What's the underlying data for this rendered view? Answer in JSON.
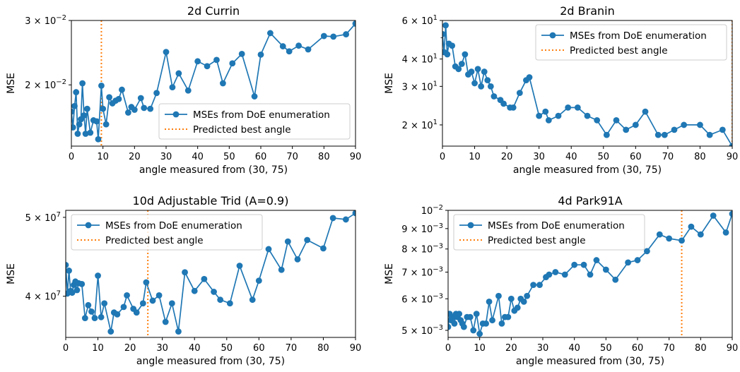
{
  "figure": {
    "charts": [
      {
        "type": "line",
        "title": "2d Currin",
        "xlabel": "angle measured from (30, 75)",
        "ylabel": "MSE",
        "yscale": "log",
        "xlim": [
          0,
          90
        ],
        "ylim": [
          0.0136,
          0.03
        ],
        "xticks": [
          0,
          10,
          20,
          30,
          40,
          50,
          60,
          70,
          80,
          90
        ],
        "xtick_labels": [
          "0",
          "10",
          "20",
          "30",
          "40",
          "50",
          "60",
          "70",
          "80",
          "90"
        ],
        "yticks": [
          0.02,
          0.03
        ],
        "ytick_labels": [
          {
            "base": "2 × 10",
            "exp": "−2"
          },
          {
            "base": "3 × 10",
            "exp": "−2"
          }
        ],
        "legend_position": "lower-right",
        "predicted_best_angle": 9.5,
        "series": [
          {
            "name": "MSEs from DoE enumeration",
            "color": "#1f77b4",
            "x": [
              0,
              0.5,
              1,
              1.5,
              2,
              2.5,
              3,
              3.5,
              4,
              4.5,
              5,
              6,
              7,
              8,
              8.5,
              9.5,
              10,
              11,
              12,
              13,
              14,
              15,
              16,
              18,
              19,
              20,
              22,
              23,
              25,
              27,
              30,
              32,
              34,
              37,
              40,
              43,
              46,
              48,
              51,
              54,
              58,
              60,
              63,
              67,
              69,
              72,
              75,
              80,
              83,
              87,
              90
            ],
            "y": [
              0.0169,
              0.0153,
              0.0175,
              0.0191,
              0.0147,
              0.0156,
              0.0161,
              0.0202,
              0.0165,
              0.0147,
              0.0172,
              0.0148,
              0.016,
              0.0159,
              0.0142,
              0.0199,
              0.0172,
              0.0156,
              0.0185,
              0.0178,
              0.0181,
              0.0183,
              0.0194,
              0.0168,
              0.0174,
              0.0171,
              0.0184,
              0.0173,
              0.0172,
              0.019,
              0.0246,
              0.0197,
              0.0215,
              0.0193,
              0.0232,
              0.0225,
              0.0234,
              0.0202,
              0.0229,
              0.0243,
              0.0186,
              0.0242,
              0.0277,
              0.0255,
              0.0247,
              0.0256,
              0.025,
              0.0272,
              0.0271,
              0.0275,
              0.0294
            ]
          }
        ]
      },
      {
        "type": "line",
        "title": "2d Branin",
        "xlabel": "angle measured from (30, 75)",
        "ylabel": "MSE",
        "yscale": "log",
        "xlim": [
          0,
          90
        ],
        "ylim": [
          16,
          60
        ],
        "xticks": [
          0,
          10,
          20,
          30,
          40,
          50,
          60,
          70,
          80,
          90
        ],
        "xtick_labels": [
          "0",
          "10",
          "20",
          "30",
          "40",
          "50",
          "60",
          "70",
          "80",
          "90"
        ],
        "yticks": [
          20,
          30,
          40,
          60
        ],
        "ytick_labels": [
          {
            "base": "2 × 10",
            "exp": "1"
          },
          {
            "base": "3 × 10",
            "exp": "1"
          },
          {
            "base": "4 × 10",
            "exp": "1"
          },
          {
            "base": "6 × 10",
            "exp": "1"
          }
        ],
        "legend_position": "upper-right",
        "predicted_best_angle": 90,
        "series": [
          {
            "name": "MSEs from DoE enumeration",
            "color": "#1f77b4",
            "x": [
              0,
              0.5,
              1,
              1.5,
              2,
              3,
              4,
              5,
              6,
              7,
              8,
              9,
              10,
              11,
              12,
              13,
              14,
              15,
              16,
              18,
              19,
              21,
              22,
              24,
              26,
              27,
              30,
              32,
              33,
              36,
              39,
              42,
              45,
              48,
              51,
              54,
              57,
              60,
              63,
              67,
              69,
              72,
              75,
              80,
              83,
              87,
              90
            ],
            "y": [
              52,
              43,
              57,
              42,
              47,
              46,
              37,
              36,
              38,
              42,
              34,
              35,
              31,
              36,
              30,
              35,
              32,
              30,
              27,
              26,
              25,
              24,
              24,
              28,
              32,
              33,
              22,
              23,
              21,
              22,
              24,
              24,
              22,
              21,
              18,
              21,
              19,
              20,
              23,
              18,
              18,
              19,
              20,
              20,
              18,
              19,
              16
            ]
          }
        ]
      },
      {
        "type": "line",
        "title": "10d Adjustable Trid (A=0.9)",
        "xlabel": "angle measured from (30, 75)",
        "ylabel": "MSE",
        "yscale": "log",
        "xlim": [
          0,
          90
        ],
        "ylim": [
          35600000,
          51000000
        ],
        "xticks": [
          0,
          10,
          20,
          30,
          40,
          50,
          60,
          70,
          80,
          90
        ],
        "xtick_labels": [
          "0",
          "10",
          "20",
          "30",
          "40",
          "50",
          "60",
          "70",
          "80",
          "90"
        ],
        "yticks": [
          40000000,
          50000000
        ],
        "ytick_labels": [
          {
            "base": "4 × 10",
            "exp": "7"
          },
          {
            "base": "5 × 10",
            "exp": "7"
          }
        ],
        "legend_position": "upper-left",
        "predicted_best_angle": 25.5,
        "series": [
          {
            "name": "MSEs from DoE enumeration",
            "color": "#1f77b4",
            "x": [
              0,
              0.5,
              1,
              1.5,
              2,
              2.5,
              3,
              3.5,
              4,
              5,
              6,
              7,
              8,
              9,
              10,
              11,
              12,
              14,
              15,
              16,
              18,
              19,
              21,
              22,
              24,
              25,
              27,
              29,
              31,
              33,
              35,
              37,
              40,
              43,
              46,
              48,
              51,
              54,
              58,
              60,
              63,
              67,
              69,
              72,
              75,
              80,
              83,
              87,
              90
            ],
            "y": [
              43700000,
              40300000,
              43000000,
              40600000,
              40400000,
              41300000,
              41700000,
              40700000,
              41500000,
              41400000,
              37600000,
              39000000,
              38300000,
              37600000,
              42400000,
              37700000,
              39200000,
              36200000,
              38200000,
              38000000,
              38800000,
              40100000,
              38600000,
              38200000,
              39200000,
              41600000,
              39500000,
              40100000,
              37200000,
              39200000,
              36200000,
              42800000,
              40600000,
              42000000,
              40500000,
              39600000,
              39200000,
              43600000,
              39600000,
              41800000,
              45700000,
              43100000,
              46700000,
              44400000,
              46900000,
              45800000,
              49900000,
              49700000,
              50600000
            ]
          }
        ]
      },
      {
        "type": "line",
        "title": "4d Park91A",
        "xlabel": "angle measured from (30, 75)",
        "ylabel": "MSE",
        "yscale": "log",
        "xlim": [
          0,
          90
        ],
        "ylim": [
          0.0048,
          0.01
        ],
        "xticks": [
          0,
          10,
          20,
          30,
          40,
          50,
          60,
          70,
          80,
          90
        ],
        "xtick_labels": [
          "0",
          "10",
          "20",
          "30",
          "40",
          "50",
          "60",
          "70",
          "80",
          "90"
        ],
        "yticks": [
          0.005,
          0.006,
          0.007,
          0.008,
          0.009,
          0.01
        ],
        "ytick_labels": [
          {
            "base": "5 × 10",
            "exp": "−3"
          },
          {
            "base": "6 × 10",
            "exp": "−3"
          },
          {
            "base": "7 × 10",
            "exp": "−3"
          },
          {
            "base": "8 × 10",
            "exp": "−3"
          },
          {
            "base": "9 × 10",
            "exp": "−3"
          },
          {
            "base": "10",
            "exp": "−2"
          }
        ],
        "legend_position": "upper-left",
        "predicted_best_angle": 74,
        "series": [
          {
            "name": "MSEs from DoE enumeration",
            "color": "#1f77b4",
            "x": [
              0,
              0.5,
              1,
              1.5,
              2,
              2.5,
              3,
              3.5,
              4,
              4.5,
              5,
              6,
              7,
              8,
              9,
              10,
              11,
              12,
              13,
              14,
              16,
              17,
              18,
              19,
              20,
              21,
              22,
              23,
              24,
              25,
              27,
              29,
              31,
              32,
              34,
              37,
              40,
              43,
              45,
              47,
              50,
              53,
              57,
              60,
              63,
              67,
              70,
              74,
              77,
              80,
              84,
              88,
              90
            ],
            "y": [
              0.0051,
              0.0055,
              0.0053,
              0.0054,
              0.0052,
              0.0055,
              0.0054,
              0.0055,
              0.0053,
              0.0052,
              0.0051,
              0.0054,
              0.0054,
              0.005,
              0.0055,
              0.0049,
              0.0052,
              0.0052,
              0.0059,
              0.0053,
              0.0061,
              0.0052,
              0.0054,
              0.0054,
              0.006,
              0.0056,
              0.0057,
              0.006,
              0.0059,
              0.0061,
              0.0065,
              0.0065,
              0.0068,
              0.0069,
              0.007,
              0.0069,
              0.0073,
              0.0073,
              0.0069,
              0.0075,
              0.0071,
              0.0067,
              0.0074,
              0.0075,
              0.0079,
              0.0087,
              0.0085,
              0.0084,
              0.0091,
              0.0087,
              0.0097,
              0.0088,
              0.0098
            ]
          }
        ]
      }
    ],
    "legend": {
      "series_label": "MSEs from DoE enumeration",
      "best_label": "Predicted best angle",
      "series_color": "#1f77b4",
      "best_color": "#ff7f0e"
    }
  }
}
